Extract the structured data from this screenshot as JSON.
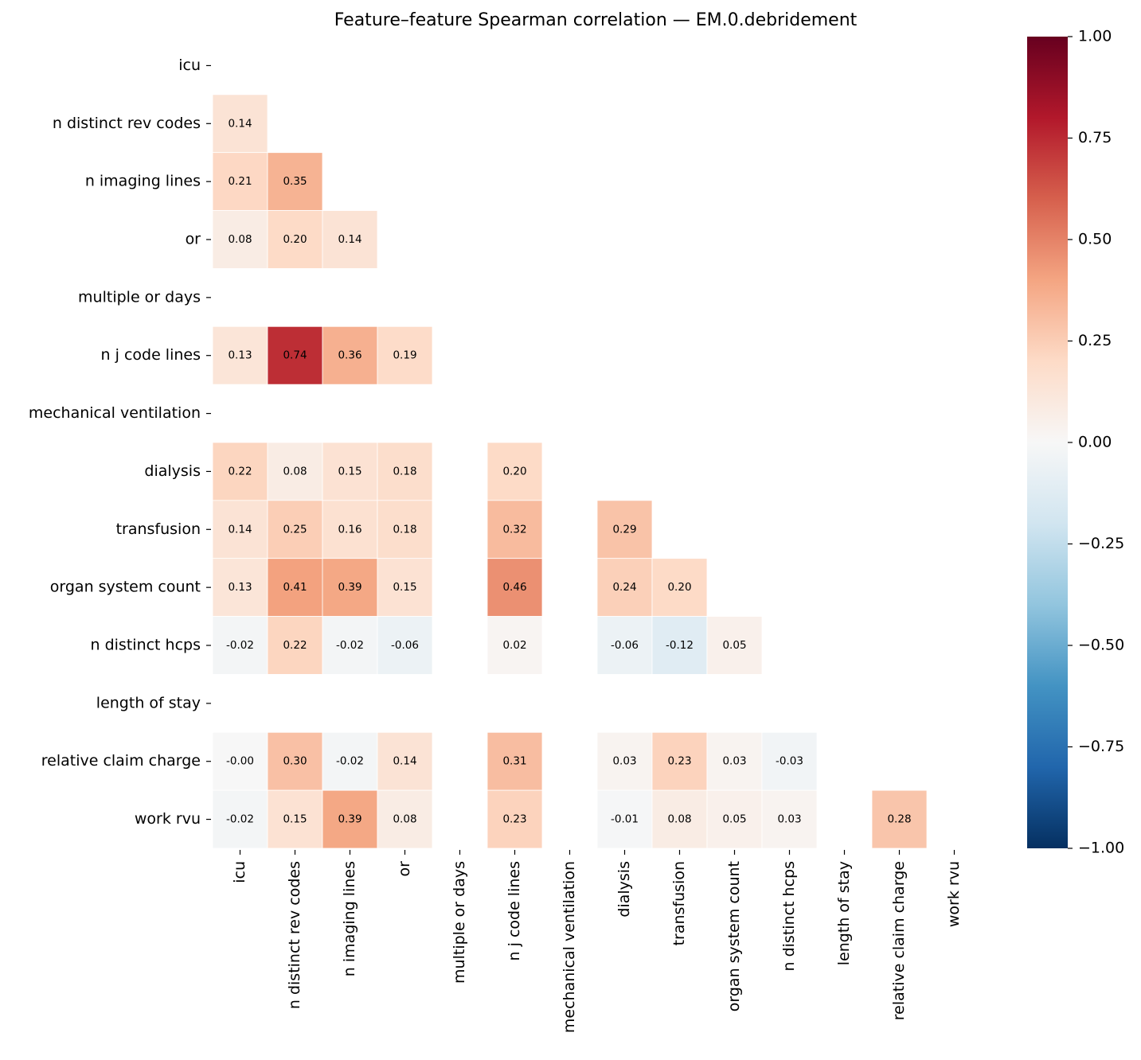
{
  "chart_data": {
    "type": "heatmap",
    "title": "Feature–feature Spearman correlation — EM.0.debridement",
    "categories": [
      "icu",
      "n distinct rev codes",
      "n imaging lines",
      "or",
      "multiple or days",
      "n j code lines",
      "mechanical ventilation",
      "dialysis",
      "transfusion",
      "organ system count",
      "n distinct hcps",
      "length of stay",
      "relative claim charge",
      "work rvu"
    ],
    "values": [
      [
        null,
        null,
        null,
        null,
        null,
        null,
        null,
        null,
        null,
        null,
        null,
        null,
        null,
        null
      ],
      [
        0.14,
        null,
        null,
        null,
        null,
        null,
        null,
        null,
        null,
        null,
        null,
        null,
        null,
        null
      ],
      [
        0.21,
        0.35,
        null,
        null,
        null,
        null,
        null,
        null,
        null,
        null,
        null,
        null,
        null,
        null
      ],
      [
        0.08,
        0.2,
        0.14,
        null,
        null,
        null,
        null,
        null,
        null,
        null,
        null,
        null,
        null,
        null
      ],
      [
        null,
        null,
        null,
        null,
        null,
        null,
        null,
        null,
        null,
        null,
        null,
        null,
        null,
        null
      ],
      [
        0.13,
        0.74,
        0.36,
        0.19,
        null,
        null,
        null,
        null,
        null,
        null,
        null,
        null,
        null,
        null
      ],
      [
        null,
        null,
        null,
        null,
        null,
        null,
        null,
        null,
        null,
        null,
        null,
        null,
        null,
        null
      ],
      [
        0.22,
        0.08,
        0.15,
        0.18,
        null,
        0.2,
        null,
        null,
        null,
        null,
        null,
        null,
        null,
        null
      ],
      [
        0.14,
        0.25,
        0.16,
        0.18,
        null,
        0.32,
        null,
        0.29,
        null,
        null,
        null,
        null,
        null,
        null
      ],
      [
        0.13,
        0.41,
        0.39,
        0.15,
        null,
        0.46,
        null,
        0.24,
        0.2,
        null,
        null,
        null,
        null,
        null
      ],
      [
        -0.02,
        0.22,
        -0.02,
        -0.06,
        null,
        0.02,
        null,
        -0.06,
        -0.12,
        0.05,
        null,
        null,
        null,
        null
      ],
      [
        null,
        null,
        null,
        null,
        null,
        null,
        null,
        null,
        null,
        null,
        null,
        null,
        null,
        null
      ],
      [
        -0.0,
        0.3,
        -0.02,
        0.14,
        null,
        0.31,
        null,
        0.03,
        0.23,
        0.03,
        -0.03,
        null,
        null,
        null
      ],
      [
        -0.02,
        0.15,
        0.39,
        0.08,
        null,
        0.23,
        null,
        -0.01,
        0.08,
        0.05,
        0.03,
        null,
        0.28,
        null
      ]
    ],
    "value_labels": [
      [
        null,
        null,
        null,
        null,
        null,
        null,
        null,
        null,
        null,
        null,
        null,
        null,
        null,
        null
      ],
      [
        "0.14",
        null,
        null,
        null,
        null,
        null,
        null,
        null,
        null,
        null,
        null,
        null,
        null,
        null
      ],
      [
        "0.21",
        "0.35",
        null,
        null,
        null,
        null,
        null,
        null,
        null,
        null,
        null,
        null,
        null,
        null
      ],
      [
        "0.08",
        "0.20",
        "0.14",
        null,
        null,
        null,
        null,
        null,
        null,
        null,
        null,
        null,
        null,
        null
      ],
      [
        null,
        null,
        null,
        null,
        null,
        null,
        null,
        null,
        null,
        null,
        null,
        null,
        null,
        null
      ],
      [
        "0.13",
        "0.74",
        "0.36",
        "0.19",
        null,
        null,
        null,
        null,
        null,
        null,
        null,
        null,
        null,
        null
      ],
      [
        null,
        null,
        null,
        null,
        null,
        null,
        null,
        null,
        null,
        null,
        null,
        null,
        null,
        null
      ],
      [
        "0.22",
        "0.08",
        "0.15",
        "0.18",
        null,
        "0.20",
        null,
        null,
        null,
        null,
        null,
        null,
        null,
        null
      ],
      [
        "0.14",
        "0.25",
        "0.16",
        "0.18",
        null,
        "0.32",
        null,
        "0.29",
        null,
        null,
        null,
        null,
        null,
        null
      ],
      [
        "0.13",
        "0.41",
        "0.39",
        "0.15",
        null,
        "0.46",
        null,
        "0.24",
        "0.20",
        null,
        null,
        null,
        null,
        null
      ],
      [
        "-0.02",
        "0.22",
        "-0.02",
        "-0.06",
        null,
        "0.02",
        null,
        "-0.06",
        "-0.12",
        "0.05",
        null,
        null,
        null,
        null
      ],
      [
        null,
        null,
        null,
        null,
        null,
        null,
        null,
        null,
        null,
        null,
        null,
        null,
        null,
        null
      ],
      [
        "-0.00",
        "0.30",
        "-0.02",
        "0.14",
        null,
        "0.31",
        null,
        "0.03",
        "0.23",
        "0.03",
        "-0.03",
        null,
        null,
        null
      ],
      [
        "-0.02",
        "0.15",
        "0.39",
        "0.08",
        null,
        "0.23",
        null,
        "-0.01",
        "0.08",
        "0.05",
        "0.03",
        null,
        "0.28",
        null
      ]
    ],
    "colormap": "RdBu_r",
    "zlim": [
      -1,
      1
    ],
    "zticks": [
      {
        "value": 1,
        "label": "1.00"
      },
      {
        "value": 0.75,
        "label": "0.75"
      },
      {
        "value": 0.5,
        "label": "0.50"
      },
      {
        "value": 0.25,
        "label": "0.25"
      },
      {
        "value": 0,
        "label": "0.00"
      },
      {
        "value": -0.25,
        "label": "−0.25"
      },
      {
        "value": -0.5,
        "label": "−0.50"
      },
      {
        "value": -0.75,
        "label": "−0.75"
      },
      {
        "value": -1,
        "label": "−1.00"
      }
    ]
  }
}
